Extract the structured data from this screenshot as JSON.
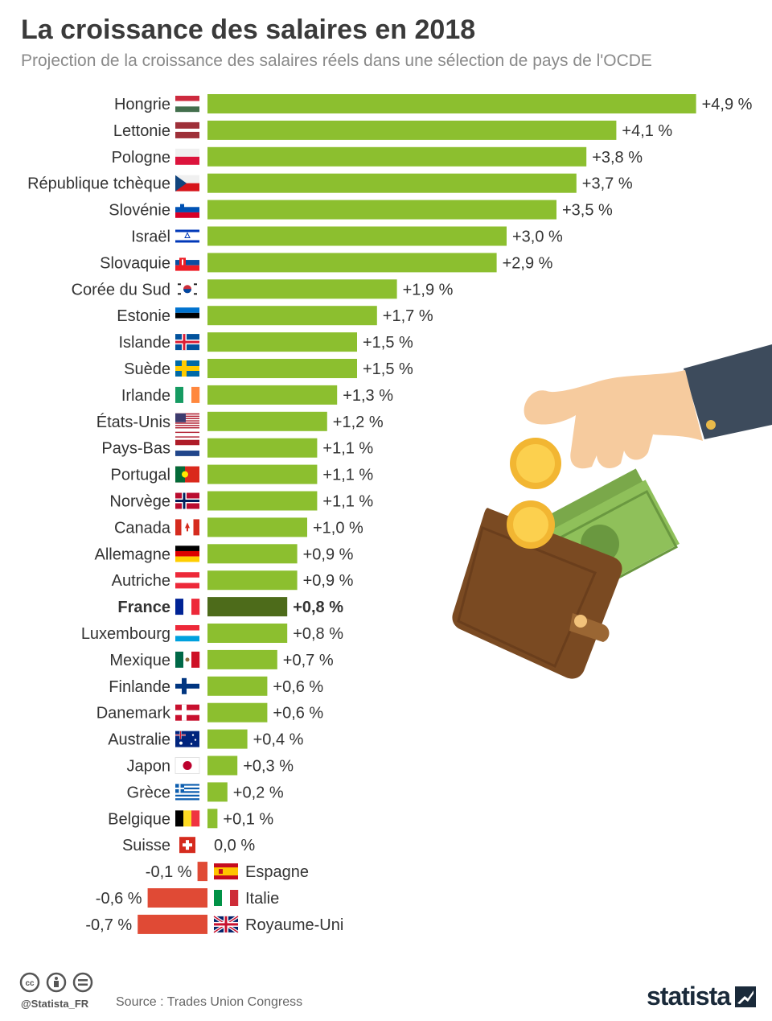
{
  "header": {
    "title": "La croissance des salaires en 2018",
    "subtitle": "Projection de la croissance des salaires réels dans une sélection de pays de l'OCDE"
  },
  "colors": {
    "positive": "#8cbf2f",
    "highlight": "#4d6b1a",
    "negative": "#e04a35"
  },
  "chart_data": {
    "type": "bar",
    "orientation": "horizontal",
    "unit": "%",
    "highlight": "France",
    "categories": [
      "Hongrie",
      "Lettonie",
      "Pologne",
      "République tchèque",
      "Slovénie",
      "Israël",
      "Slovaquie",
      "Corée du Sud",
      "Estonie",
      "Islande",
      "Suède",
      "Irlande",
      "États-Unis",
      "Pays-Bas",
      "Portugal",
      "Norvège",
      "Canada",
      "Allemagne",
      "Autriche",
      "France",
      "Luxembourg",
      "Mexique",
      "Finlande",
      "Danemark",
      "Australie",
      "Japon",
      "Grèce",
      "Belgique",
      "Suisse",
      "Espagne",
      "Italie",
      "Royaume-Uni"
    ],
    "values": [
      4.9,
      4.1,
      3.8,
      3.7,
      3.5,
      3.0,
      2.9,
      1.9,
      1.7,
      1.5,
      1.5,
      1.3,
      1.2,
      1.1,
      1.1,
      1.1,
      1.0,
      0.9,
      0.9,
      0.8,
      0.8,
      0.7,
      0.6,
      0.6,
      0.4,
      0.3,
      0.2,
      0.1,
      0.0,
      -0.1,
      -0.6,
      -0.7
    ],
    "value_labels": [
      "+4,9 %",
      "+4,1 %",
      "+3,8 %",
      "+3,7 %",
      "+3,5 %",
      "+3,0 %",
      "+2,9 %",
      "+1,9 %",
      "+1,7 %",
      "+1,5 %",
      "+1,5 %",
      "+1,3 %",
      "+1,2 %",
      "+1,1 %",
      "+1,1 %",
      "+1,1 %",
      "+1,0 %",
      "+0,9 %",
      "+0,9 %",
      "+0,8 %",
      "+0,8 %",
      "+0,7 %",
      "+0,6 %",
      "+0,6 %",
      "+0,4 %",
      "+0,3 %",
      "+0,2 %",
      "+0,1 %",
      "0,0 %",
      "-0,1 %",
      "-0,6 %",
      "-0,7 %"
    ],
    "flags": [
      "hu",
      "lv",
      "pl",
      "cz",
      "si",
      "il",
      "sk",
      "kr",
      "ee",
      "is",
      "se",
      "ie",
      "us",
      "nl",
      "pt",
      "no",
      "ca",
      "de",
      "at",
      "fr",
      "lu",
      "mx",
      "fi",
      "dk",
      "au",
      "jp",
      "gr",
      "be",
      "ch",
      "es",
      "it",
      "gb"
    ]
  },
  "footer": {
    "handle": "@Statista_FR",
    "source": "Source : Trades Union Congress",
    "brand": "statista"
  }
}
